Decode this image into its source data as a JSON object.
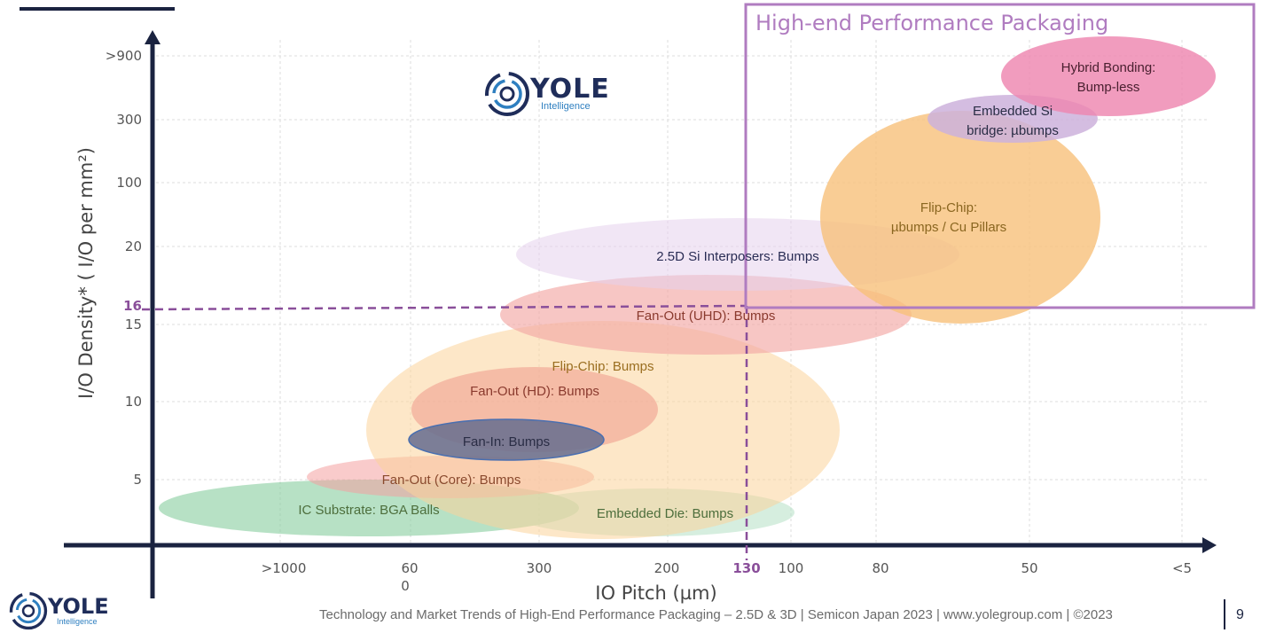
{
  "chart_data": {
    "type": "bubble-region",
    "title": "High-end Performance Packaging",
    "xlabel": "IO Pitch (µm)",
    "ylabel": "I/O Density* ( I/O per mm²)",
    "x_ticks": [
      ">1000",
      "60\n0",
      "300",
      "200",
      "130",
      "100",
      "80",
      "50",
      "<5"
    ],
    "y_ticks": [
      ">900",
      "300",
      "100",
      "20",
      "16",
      "15",
      "10",
      "5"
    ],
    "threshold": {
      "x_label": "130",
      "y_label": "16"
    },
    "regions": [
      {
        "name": "IC Substrate: BGA Balls",
        "x_range": [
          ">1000",
          "300"
        ],
        "y_range": [
          "<5",
          "5"
        ],
        "color": "#7cc896"
      },
      {
        "name": "Embedded Die: Bumps",
        "x_range": [
          "300",
          "100"
        ],
        "y_range": [
          "<5",
          "5"
        ],
        "color": "#b4e0c4"
      },
      {
        "name": "Fan-Out (Core): Bumps",
        "x_range": [
          ">1000",
          "300"
        ],
        "y_range": [
          "5",
          "5"
        ],
        "color": "#f4a0a0"
      },
      {
        "name": "Flip-Chip: Bumps",
        "x_range": [
          "600",
          "100"
        ],
        "y_range": [
          "<5",
          "15"
        ],
        "color": "#fbd49a"
      },
      {
        "name": "Fan-Out (HD): Bumps",
        "x_range": [
          "600",
          "200"
        ],
        "y_range": [
          "5",
          "10"
        ],
        "color": "#f0a090"
      },
      {
        "name": "Fan-In: Bumps",
        "x_range": [
          "600",
          "200"
        ],
        "y_range": [
          "5",
          "10"
        ],
        "color": "#6a6f8f"
      },
      {
        "name": "Fan-Out (UHD): Bumps",
        "x_range": [
          "300",
          "80"
        ],
        "y_range": [
          "15",
          "16"
        ],
        "color": "#f3a7a4"
      },
      {
        "name": "2.5D Si Interposers: Bumps",
        "x_range": [
          "300",
          "50"
        ],
        "y_range": [
          "16",
          "20"
        ],
        "color": "#e6d2ec"
      },
      {
        "name": "Flip-Chip: µbumps / Cu Pillars",
        "x_range": [
          "80",
          "50"
        ],
        "y_range": [
          "15",
          "300"
        ],
        "color": "#f8c07a"
      },
      {
        "name": "Embedded Si bridge: µbumps",
        "x_range": [
          "50",
          "50"
        ],
        "y_range": [
          "300",
          "300"
        ],
        "color": "#cdb1dc"
      },
      {
        "name": "Hybrid Bonding: Bump-less",
        "x_range": [
          "50",
          "<5"
        ],
        "y_range": [
          "300",
          ">900"
        ],
        "color": "#ee86b0"
      }
    ]
  },
  "labels": {
    "ic_substrate": "IC Substrate: BGA Balls",
    "embedded_die": "Embedded Die: Bumps",
    "fanout_core": "Fan-Out (Core): Bumps",
    "flip_chip": "Flip-Chip: Bumps",
    "fanout_hd": "Fan-Out (HD): Bumps",
    "fan_in": "Fan-In: Bumps",
    "fanout_uhd": "Fan-Out (UHD): Bumps",
    "si_interposer": "2.5D Si Interposers: Bumps",
    "flipchip_ub_1": "Flip-Chip:",
    "flipchip_ub_2": "µbumps / Cu Pillars",
    "emib_1": "Embedded Si",
    "emib_2": "bridge: µbumps",
    "hybrid_1": "Hybrid Bonding:",
    "hybrid_2": "Bump-less"
  },
  "logo": {
    "word": "YOLE",
    "sub": "Intelligence"
  },
  "footer": {
    "text": "Technology and Market Trends of High-End Performance Packaging – 2.5D & 3D | Semicon Japan 2023 | www.yolegroup.com | ©2023",
    "page": "9"
  },
  "colors": {
    "axis": "#1a2340",
    "accent": "#b07cc0",
    "threshold": "#8a4f9a",
    "grid": "#dddddd"
  }
}
